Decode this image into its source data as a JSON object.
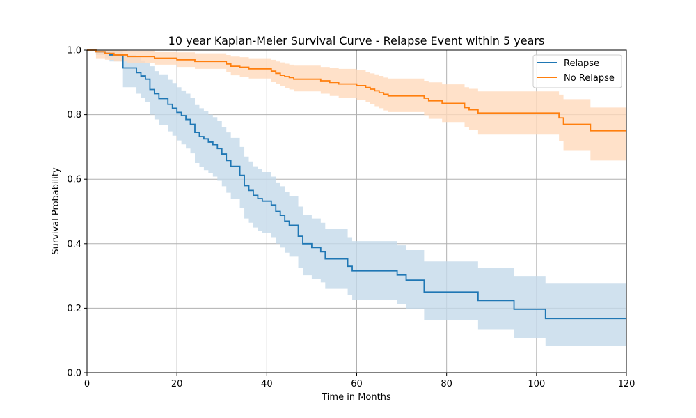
{
  "chart_data": {
    "type": "line",
    "title": "10 year Kaplan-Meier Survival Curve - Relapse Event within 5 years",
    "xlabel": "Time in Months",
    "ylabel": "Survival Probability",
    "xlim": [
      0,
      120
    ],
    "ylim": [
      0,
      1
    ],
    "xticks": [
      0,
      20,
      40,
      60,
      80,
      100,
      120
    ],
    "yticks": [
      0.0,
      0.2,
      0.4,
      0.6,
      0.8,
      1.0
    ],
    "xtick_labels": [
      "0",
      "20",
      "40",
      "60",
      "80",
      "100",
      "120"
    ],
    "ytick_labels": [
      "0.0",
      "0.2",
      "0.4",
      "0.6",
      "0.8",
      "1.0"
    ],
    "grid": true,
    "legend_position": "top-right",
    "series": [
      {
        "name": "Relapse",
        "color": "#1f77b4",
        "band_color": "#c4d9ea",
        "x": [
          0,
          2,
          4,
          5,
          8,
          11,
          12,
          13,
          14,
          15,
          16,
          18,
          19,
          20,
          21,
          22,
          23,
          24,
          25,
          26,
          27,
          28,
          29,
          30,
          31,
          32,
          34,
          35,
          36,
          37,
          38,
          39,
          40,
          41,
          42,
          43,
          44,
          45,
          47,
          48,
          50,
          52,
          53,
          58,
          59,
          69,
          71,
          75,
          87,
          95,
          102,
          120
        ],
        "y": [
          1.0,
          0.995,
          0.99,
          0.985,
          0.945,
          0.93,
          0.92,
          0.91,
          0.878,
          0.865,
          0.85,
          0.832,
          0.82,
          0.807,
          0.797,
          0.785,
          0.77,
          0.745,
          0.732,
          0.725,
          0.715,
          0.707,
          0.695,
          0.678,
          0.658,
          0.64,
          0.612,
          0.58,
          0.565,
          0.55,
          0.54,
          0.532,
          0.532,
          0.52,
          0.5,
          0.488,
          0.47,
          0.457,
          0.423,
          0.4,
          0.388,
          0.375,
          0.353,
          0.33,
          0.316,
          0.303,
          0.287,
          0.25,
          0.224,
          0.197,
          0.168,
          0.168
        ],
        "upper": [
          1.0,
          1.0,
          1.0,
          0.998,
          0.985,
          0.978,
          0.968,
          0.96,
          0.95,
          0.935,
          0.925,
          0.908,
          0.898,
          0.885,
          0.875,
          0.865,
          0.852,
          0.83,
          0.82,
          0.81,
          0.8,
          0.792,
          0.78,
          0.762,
          0.745,
          0.728,
          0.7,
          0.67,
          0.655,
          0.64,
          0.632,
          0.622,
          0.622,
          0.608,
          0.59,
          0.578,
          0.56,
          0.548,
          0.515,
          0.49,
          0.478,
          0.465,
          0.445,
          0.42,
          0.408,
          0.395,
          0.38,
          0.345,
          0.325,
          0.3,
          0.278,
          0.278
        ],
        "lower": [
          1.0,
          0.985,
          0.975,
          0.965,
          0.885,
          0.865,
          0.852,
          0.84,
          0.8,
          0.785,
          0.768,
          0.748,
          0.735,
          0.72,
          0.708,
          0.695,
          0.68,
          0.65,
          0.638,
          0.628,
          0.618,
          0.608,
          0.595,
          0.578,
          0.558,
          0.538,
          0.51,
          0.478,
          0.465,
          0.45,
          0.44,
          0.432,
          0.432,
          0.42,
          0.4,
          0.388,
          0.372,
          0.36,
          0.325,
          0.302,
          0.29,
          0.28,
          0.26,
          0.24,
          0.225,
          0.212,
          0.198,
          0.162,
          0.135,
          0.108,
          0.082,
          0.082
        ]
      },
      {
        "name": "No Relapse",
        "color": "#ff7f0e",
        "band_color": "#ffdabb",
        "x": [
          0,
          2,
          4,
          6,
          9,
          15,
          20,
          24,
          31,
          32,
          34,
          36,
          41,
          42,
          43,
          44,
          45,
          46,
          48,
          52,
          54,
          56,
          60,
          62,
          63,
          64,
          65,
          66,
          67,
          75,
          76,
          79,
          80,
          84,
          85,
          87,
          105,
          106,
          108,
          112,
          120
        ],
        "y": [
          1.0,
          0.995,
          0.99,
          0.985,
          0.98,
          0.975,
          0.97,
          0.965,
          0.957,
          0.95,
          0.947,
          0.942,
          0.935,
          0.928,
          0.922,
          0.918,
          0.915,
          0.91,
          0.91,
          0.905,
          0.9,
          0.895,
          0.89,
          0.884,
          0.879,
          0.874,
          0.868,
          0.863,
          0.858,
          0.851,
          0.843,
          0.835,
          0.835,
          0.822,
          0.815,
          0.805,
          0.79,
          0.77,
          0.77,
          0.75,
          0.75
        ],
        "upper": [
          1.0,
          1.0,
          1.0,
          1.0,
          0.998,
          0.995,
          0.993,
          0.99,
          0.985,
          0.98,
          0.978,
          0.975,
          0.97,
          0.965,
          0.962,
          0.958,
          0.955,
          0.952,
          0.952,
          0.948,
          0.945,
          0.942,
          0.938,
          0.933,
          0.928,
          0.925,
          0.92,
          0.915,
          0.912,
          0.905,
          0.9,
          0.894,
          0.894,
          0.885,
          0.88,
          0.872,
          0.862,
          0.848,
          0.848,
          0.822,
          0.822
        ],
        "lower": [
          1.0,
          0.975,
          0.97,
          0.965,
          0.96,
          0.955,
          0.948,
          0.942,
          0.932,
          0.922,
          0.918,
          0.912,
          0.902,
          0.895,
          0.888,
          0.882,
          0.878,
          0.872,
          0.872,
          0.865,
          0.858,
          0.852,
          0.845,
          0.838,
          0.832,
          0.826,
          0.82,
          0.813,
          0.808,
          0.798,
          0.787,
          0.777,
          0.777,
          0.762,
          0.752,
          0.738,
          0.718,
          0.688,
          0.688,
          0.658,
          0.658
        ]
      }
    ]
  }
}
